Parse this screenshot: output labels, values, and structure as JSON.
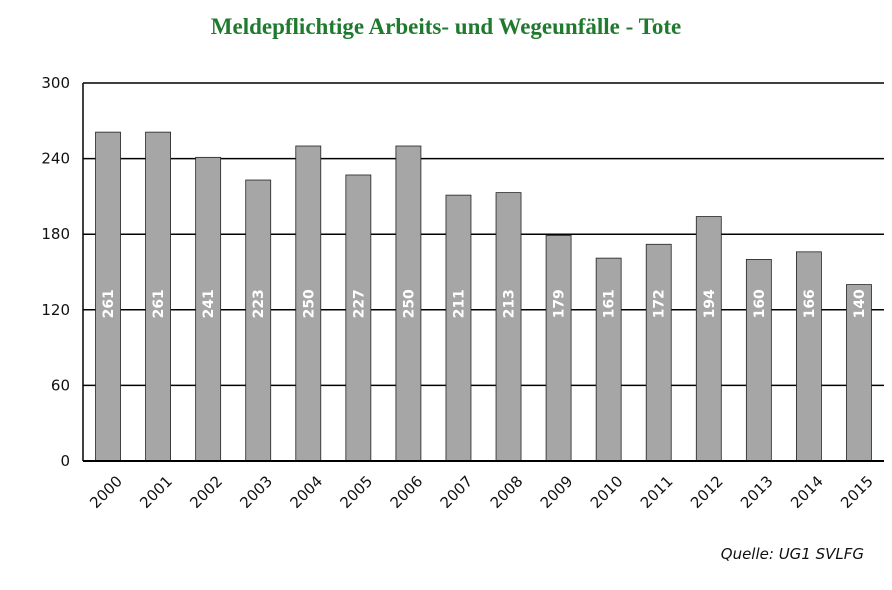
{
  "chart_data": {
    "type": "bar",
    "title": "Meldepflichtige Arbeits- und Wegeunfälle - Tote",
    "categories": [
      "2000",
      "2001",
      "2002",
      "2003",
      "2004",
      "2005",
      "2006",
      "2007",
      "2008",
      "2009",
      "2010",
      "2011",
      "2012",
      "2013",
      "2014",
      "2015"
    ],
    "values": [
      261,
      261,
      241,
      223,
      250,
      227,
      250,
      211,
      213,
      179,
      161,
      172,
      194,
      160,
      166,
      140
    ],
    "yticks": [
      "0",
      "60",
      "120",
      "180",
      "240",
      "300"
    ],
    "ylim": [
      0,
      300
    ],
    "grid": true,
    "bar_color": "#a6a6a6",
    "title_color": "#1f7a2e",
    "source": "Quelle: UG1 SVLFG"
  }
}
